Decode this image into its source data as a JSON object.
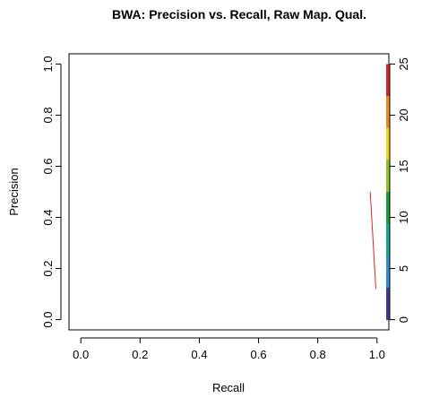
{
  "chart_data": {
    "type": "line",
    "title": "BWA: Precision vs. Recall, Raw Map. Qual.",
    "xlabel": "Recall",
    "ylabel": "Precision",
    "xlim": [
      -0.04,
      1.04
    ],
    "ylim": [
      -0.04,
      1.04
    ],
    "x_ticks": [
      "0.0",
      "0.2",
      "0.4",
      "0.6",
      "0.8",
      "1.0"
    ],
    "y_ticks": [
      "0.0",
      "0.2",
      "0.4",
      "0.6",
      "0.8",
      "1.0"
    ],
    "grid": false,
    "series": [
      {
        "color": "#d62728",
        "x": [
          0.977,
          0.996
        ],
        "y": [
          0.5,
          0.12
        ]
      }
    ],
    "colorbar": {
      "range": [
        0,
        25
      ],
      "ticks": [
        "0",
        "5",
        "10",
        "15",
        "20",
        "25"
      ],
      "colors": [
        "#3b3f8f",
        "#2f8fd1",
        "#12a99a",
        "#1a9e3a",
        "#8fc12a",
        "#f2d21b",
        "#f08a1f",
        "#d62728"
      ]
    }
  }
}
